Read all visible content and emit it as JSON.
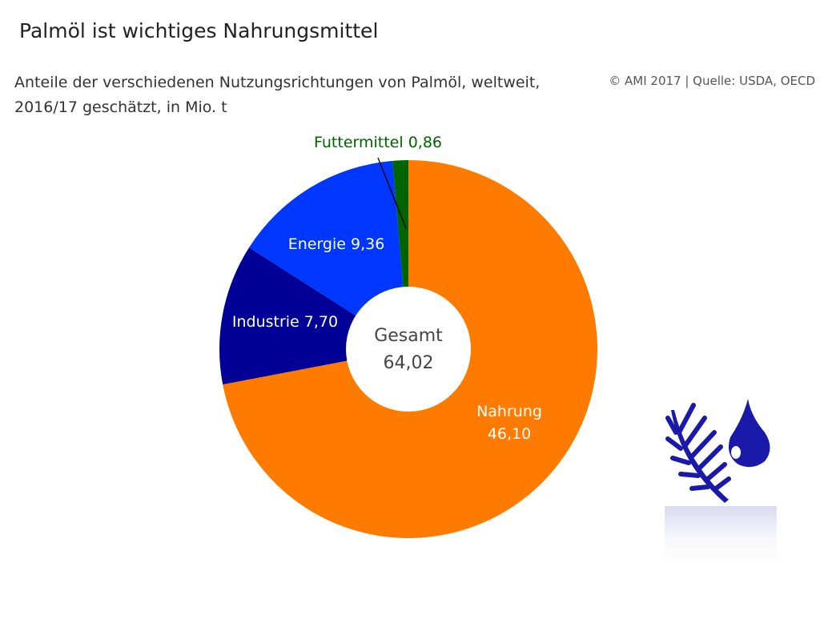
{
  "header": {
    "title": "Palmöl ist wichtiges Nahrungsmittel",
    "subtitle_line1": "Anteile der verschiedenen Nutzungsrichtungen von Palmöl, weltweit,",
    "subtitle_line2": "2016/17 geschätzt, in Mio. t",
    "source": "© AMI 2017 | Quelle: USDA, OECD"
  },
  "chart_data": {
    "type": "pie",
    "title": "Palmöl ist wichtiges Nahrungsmittel",
    "unit": "Mio. t",
    "categories": [
      "Nahrung",
      "Industrie",
      "Energie",
      "Futtermittel"
    ],
    "values": [
      46.1,
      7.7,
      9.36,
      0.86
    ],
    "labels": [
      [
        "Nahrung",
        "46,10"
      ],
      [
        "Industrie 7,70"
      ],
      [
        "Energie 9,36"
      ],
      [
        "Futtermittel 0,86"
      ]
    ],
    "colors": [
      "#FF7B00",
      "#000096",
      "#0037FF",
      "#006400"
    ],
    "center_label": [
      "Gesamt",
      "64,02"
    ],
    "donut": true,
    "start": "top",
    "direction": "clockwise"
  },
  "icons": [
    "palm-leaf-icon",
    "oil-drop-icon"
  ]
}
